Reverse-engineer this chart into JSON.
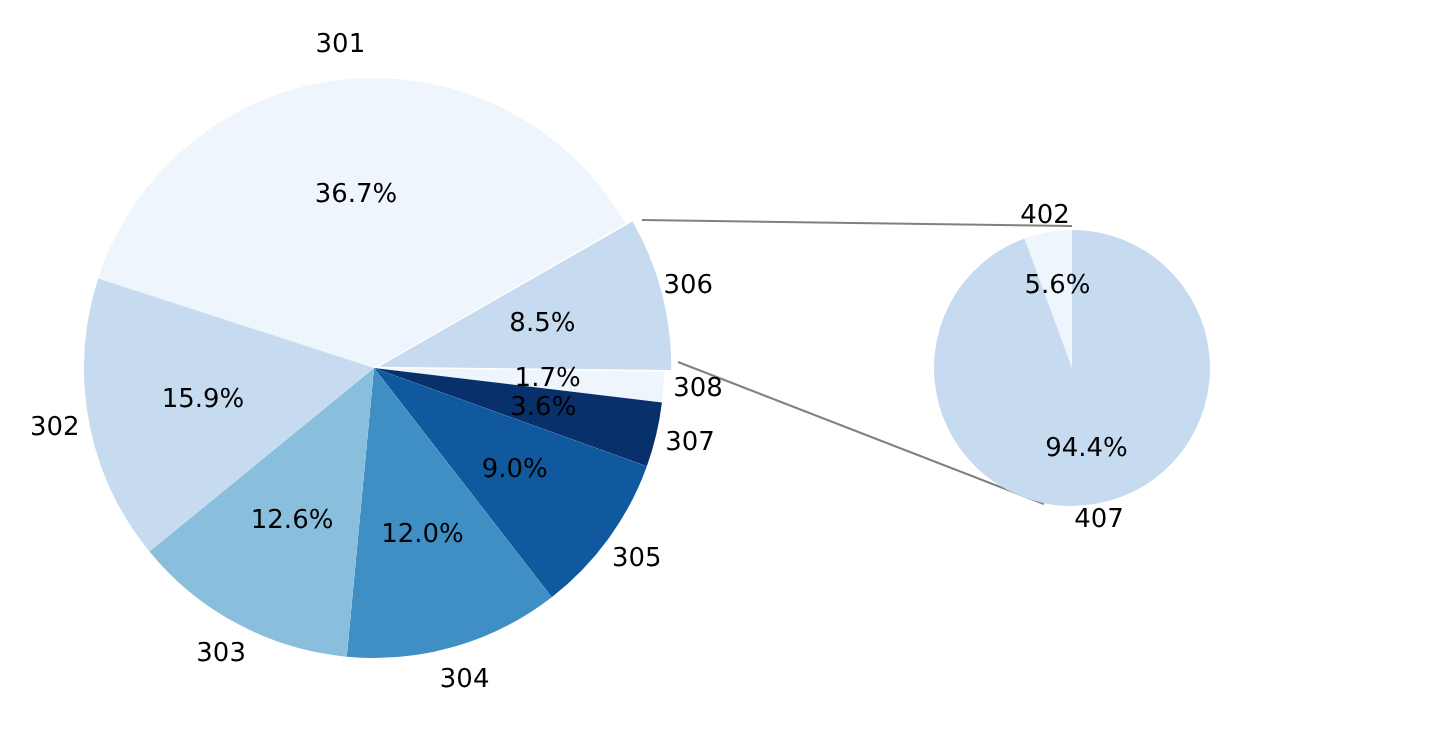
{
  "chart_data": [
    {
      "type": "pie",
      "categories": [
        "301",
        "306",
        "308",
        "307",
        "305",
        "304",
        "303",
        "302"
      ],
      "values": [
        36.7,
        8.5,
        1.7,
        3.6,
        9.0,
        12.0,
        12.6,
        15.9
      ],
      "colors": [
        "#eef5fc",
        "#c6dbef",
        "#eef5fc",
        "#08306b",
        "#11599f",
        "#3f8fc5",
        "#89bedc",
        "#c6dbef"
      ],
      "value_labels": [
        "36.7%",
        "8.5%",
        "1.7%",
        "3.6%",
        "9.0%",
        "12.0%",
        "12.6%",
        "15.9%"
      ],
      "legend": false
    },
    {
      "type": "pie",
      "categories": [
        "402",
        "407"
      ],
      "values": [
        5.6,
        94.4
      ],
      "colors": [
        "#eef5fc",
        "#c6dbef"
      ],
      "value_labels": [
        "5.6%",
        "94.4%"
      ],
      "legend": false
    }
  ]
}
